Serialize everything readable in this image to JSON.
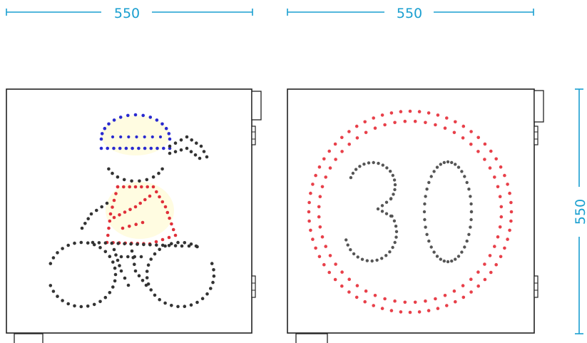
{
  "dimensions": {
    "left_panel_width": "550",
    "right_panel_width": "550",
    "right_panel_height": "550",
    "color": "#1a9fd0"
  },
  "left_sign": {
    "pictogram": "cyclist-icon",
    "colors": {
      "helmet": "#2a2ad0",
      "body": "#e0303a",
      "bike": "#333333",
      "highlight": "#fff7a8"
    }
  },
  "right_sign": {
    "speed_limit": "30",
    "colors": {
      "ring": "#e8404a",
      "digits": "#555555"
    }
  }
}
